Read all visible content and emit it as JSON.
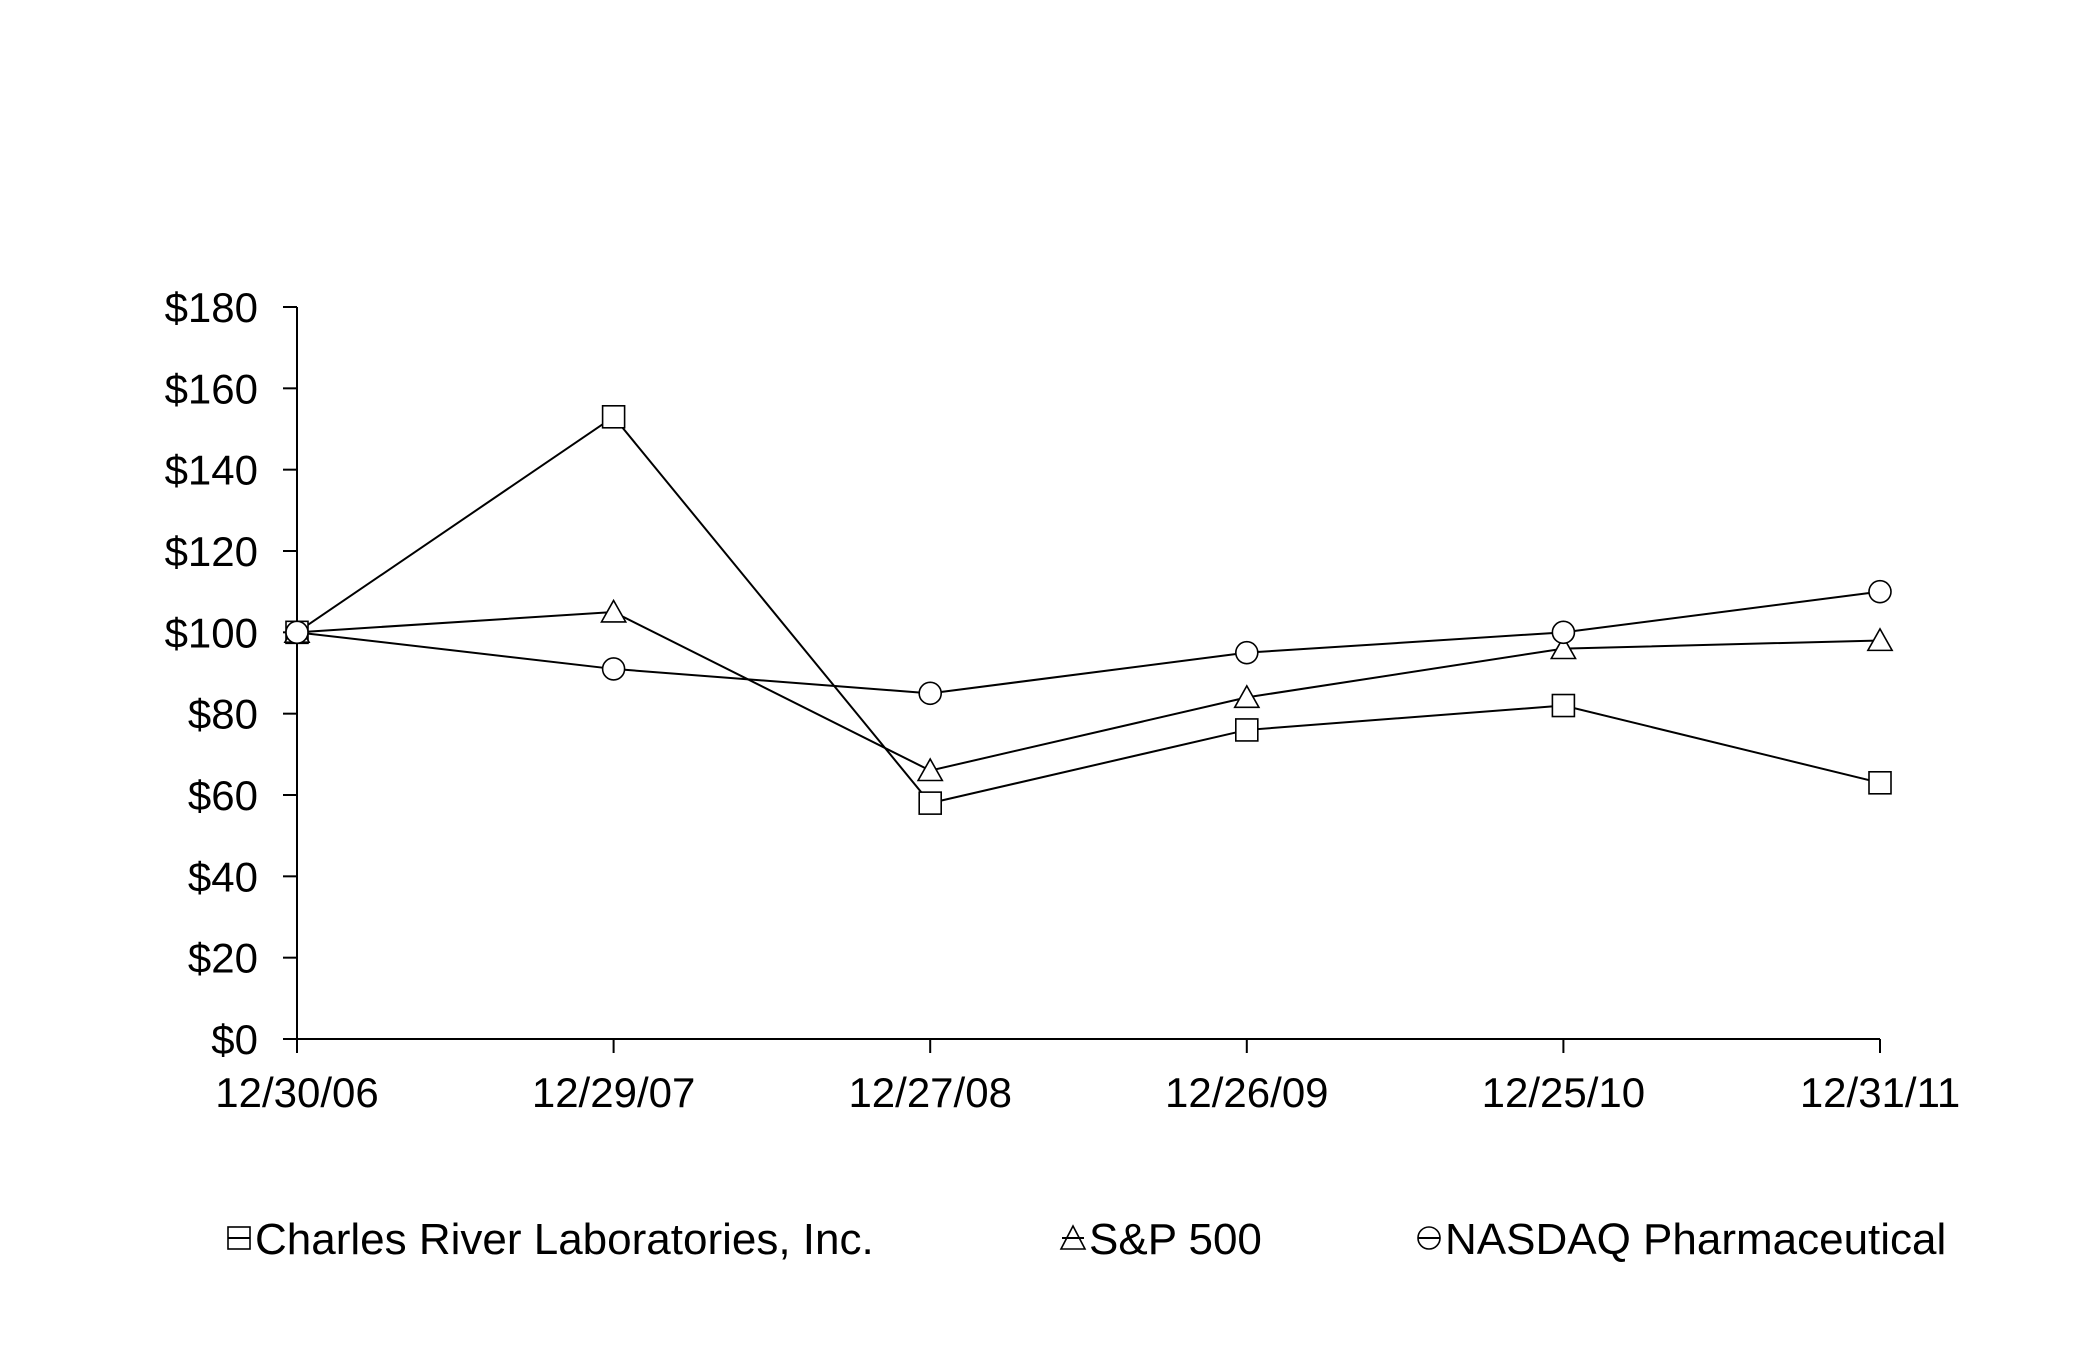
{
  "chart_data": {
    "type": "line",
    "title": "",
    "xlabel": "",
    "ylabel": "",
    "categories": [
      "12/30/06",
      "12/29/07",
      "12/27/08",
      "12/26/09",
      "12/25/10",
      "12/31/11"
    ],
    "y_ticks": [
      "$0",
      "$20",
      "$40",
      "$60",
      "$80",
      "$100",
      "$120",
      "$140",
      "$160",
      "$180"
    ],
    "ylim": [
      0,
      180
    ],
    "grid": false,
    "legend_position": "bottom",
    "series": [
      {
        "name": "Charles River Laboratories, Inc.",
        "marker": "square",
        "color": "#000000",
        "values": [
          100,
          153,
          58,
          76,
          82,
          63
        ]
      },
      {
        "name": "S&P 500",
        "marker": "triangle",
        "color": "#000000",
        "values": [
          100,
          105,
          66,
          84,
          96,
          98
        ]
      },
      {
        "name": "NASDAQ Pharmaceutical",
        "marker": "circle",
        "color": "#000000",
        "values": [
          100,
          91,
          85,
          95,
          100,
          110
        ]
      }
    ]
  }
}
